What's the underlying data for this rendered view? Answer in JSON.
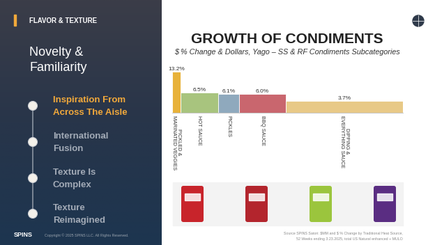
{
  "slide": {
    "section": "FLAVOR & TEXTURE",
    "heading": [
      "Novelty &",
      "Familiarity"
    ],
    "menu": [
      {
        "lines": [
          "Inspiration From",
          "Across The Aisle"
        ],
        "active": true
      },
      {
        "lines": [
          "International",
          "Fusion"
        ],
        "active": false
      },
      {
        "lines": [
          "Texture Is",
          "Complex"
        ],
        "active": false
      },
      {
        "lines": [
          "Texture",
          "Reimagined"
        ],
        "active": false
      }
    ],
    "logo": "SPINS",
    "copyright": "Copyright © 2025 SPINS LLC. All Rights Reserved.",
    "source": [
      "Source SPINS Satori: $MM and $ % Change by Traditional Heat Source,",
      "52 Weeks ending 3.23.2025, total US Natural enhanced + MULO"
    ]
  },
  "chart_data": {
    "type": "bar",
    "title": "GROWTH OF CONDIMENTS",
    "subtitle": "$ % Change & Dollars, Yago – SS & RF Condiments Subcategories",
    "categories": [
      "PICKLED & MARINATED VEGGIES",
      "HOT SAUCE",
      "PICKLES",
      "BBQ SAUCE",
      "DIPPING & EVERYTHING SAUCE"
    ],
    "values": [
      13.2,
      6.5,
      6.1,
      6.0,
      3.7
    ],
    "value_labels": [
      "13.2%",
      "6.5%",
      "6.1%",
      "6.0%",
      "3.7%"
    ],
    "dollar_share": [
      3.6,
      16.3,
      9.1,
      20.2,
      50.8
    ],
    "colors": [
      "#e8b23a",
      "#a8c47e",
      "#8fa9bd",
      "#c9666e",
      "#e8c987"
    ],
    "ylim": [
      0,
      13.2
    ],
    "data_labels": true,
    "tick_labels": false,
    "grid": false
  }
}
